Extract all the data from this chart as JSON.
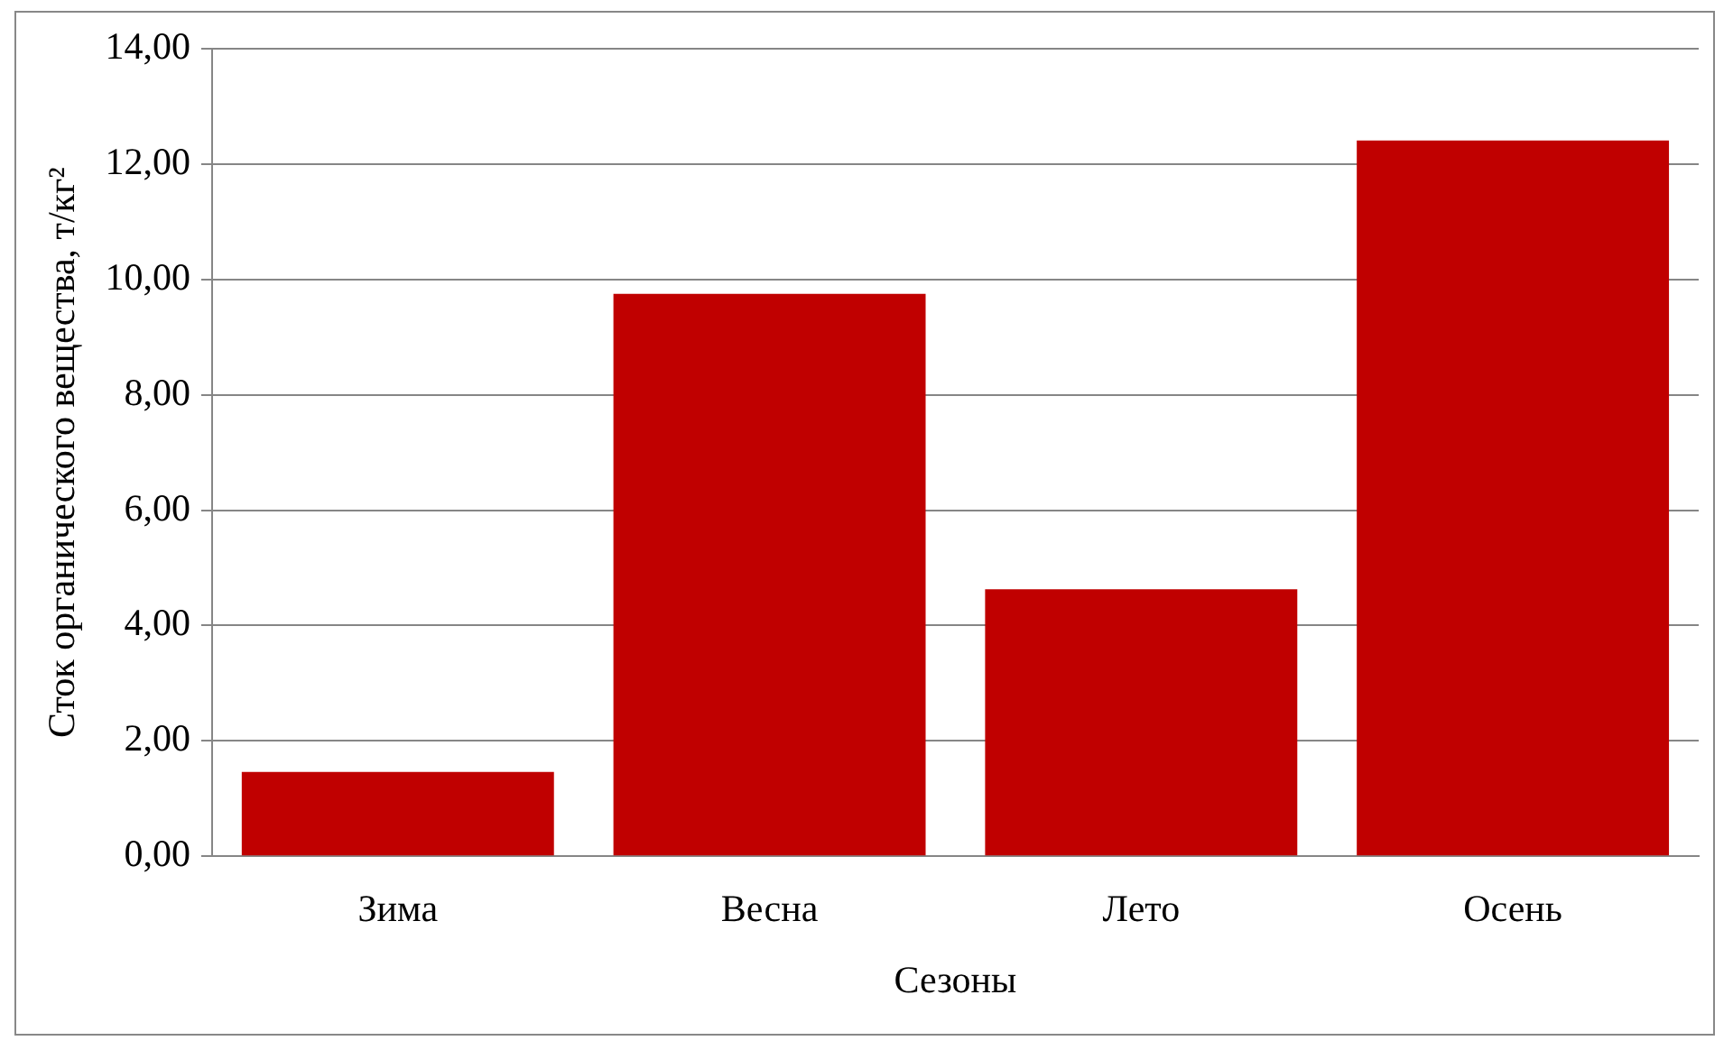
{
  "chart_data": {
    "type": "bar",
    "xlabel": "Сезоны",
    "ylabel": "Сток органического вещества, т/кг²",
    "categories": [
      "Зима",
      "Весна",
      "Лето",
      "Осень"
    ],
    "values": [
      1.46,
      9.75,
      4.63,
      12.41
    ],
    "color": "#c00000",
    "ylim": [
      0,
      14
    ],
    "yticks": [
      {
        "value": 0,
        "label": "0,00"
      },
      {
        "value": 2,
        "label": "2,00"
      },
      {
        "value": 4,
        "label": "4,00"
      },
      {
        "value": 6,
        "label": "6,00"
      },
      {
        "value": 8,
        "label": "8,00"
      },
      {
        "value": 10,
        "label": "10,00"
      },
      {
        "value": 12,
        "label": "12,00"
      },
      {
        "value": 14,
        "label": "14,00"
      }
    ],
    "grid": "y",
    "legend": false
  }
}
